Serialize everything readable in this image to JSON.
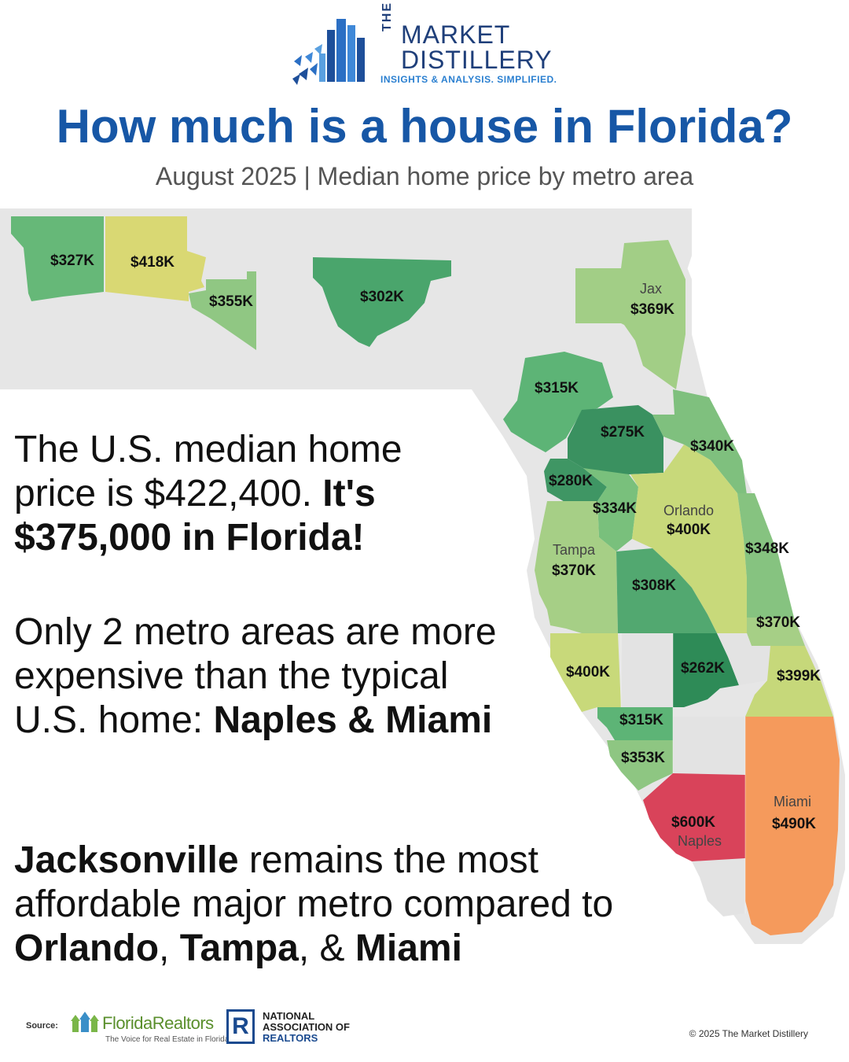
{
  "brand": {
    "the": "THE",
    "line1": "MARKET",
    "line2": "DISTILLERY",
    "tagline": "INSIGHTS & ANALYSIS. SIMPLIFIED."
  },
  "title": "How much is a house in Florida?",
  "subtitle": "August 2025 | Median home price by metro area",
  "map": {
    "colors": {
      "p262": "#2e8b57",
      "p275": "#3a9160",
      "p280": "#3f9664",
      "p302": "#4aa56c",
      "p308": "#52a870",
      "p315": "#5db476",
      "p327": "#66b878",
      "p334": "#79c07c",
      "p340": "#7fc07e",
      "p348": "#86c380",
      "p353": "#8ec682",
      "p355": "#90c783",
      "p369": "#a2ce86",
      "p370": "#a6cf86",
      "p399": "#c6d87a",
      "p400": "#c8d97a",
      "p418": "#d9d873",
      "p490": "#f59a5c",
      "p600": "#d9435a",
      "state": "#e6e6e6",
      "nodata": "#e3e3e3"
    },
    "regions": [
      {
        "key": "pensacola",
        "price": "$327K"
      },
      {
        "key": "crestview",
        "price": "$418K"
      },
      {
        "key": "panama-city",
        "price": "$355K"
      },
      {
        "key": "tallahassee",
        "price": "$302K"
      },
      {
        "key": "jacksonville",
        "city": "Jax",
        "price": "$369K"
      },
      {
        "key": "gainesville",
        "price": "$315K"
      },
      {
        "key": "ocala",
        "price": "$275K"
      },
      {
        "key": "palm-coast",
        "price": "$340K"
      },
      {
        "key": "homosassa",
        "price": "$280K"
      },
      {
        "key": "the-villages",
        "price": "$334K"
      },
      {
        "key": "orlando",
        "city": "Orlando",
        "price": "$400K"
      },
      {
        "key": "deltona",
        "price": "$348K"
      },
      {
        "key": "tampa",
        "city": "Tampa",
        "price": "$370K"
      },
      {
        "key": "lakeland",
        "price": "$308K"
      },
      {
        "key": "palm-bay",
        "price": "$370K"
      },
      {
        "key": "sarasota",
        "price": "$400K"
      },
      {
        "key": "sebring",
        "price": "$262K"
      },
      {
        "key": "port-st-lucie",
        "price": "$399K"
      },
      {
        "key": "punta-gorda",
        "price": "$315K"
      },
      {
        "key": "cape-coral",
        "price": "$353K"
      },
      {
        "key": "naples",
        "city": "Naples",
        "price": "$600K"
      },
      {
        "key": "miami",
        "city": "Miami",
        "price": "$490K"
      }
    ]
  },
  "text": {
    "block1_a": "The U.S. median home price is $422,400. ",
    "block1_b": "It's $375,000 in Florida!",
    "block2_a": "Only 2 metro areas are more expensive than the typical U.S. home: ",
    "block2_b": "Naples & Miami",
    "block3_a": "Jacksonville",
    "block3_b": " remains the most affordable major metro compared to ",
    "block3_c": "Orlando",
    "block3_d": ", ",
    "block3_e": "Tampa",
    "block3_f": ", & ",
    "block3_g": "Miami"
  },
  "footer": {
    "source_label": "Source:",
    "fr_name": "FloridaRealtors",
    "fr_tagline": "The Voice for Real Estate in Florida",
    "nar_letter": "R",
    "nar_line1": "NATIONAL",
    "nar_line2": "ASSOCIATION OF",
    "nar_line3": "REALTORS",
    "copyright": "© 2025 The Market Distillery"
  }
}
